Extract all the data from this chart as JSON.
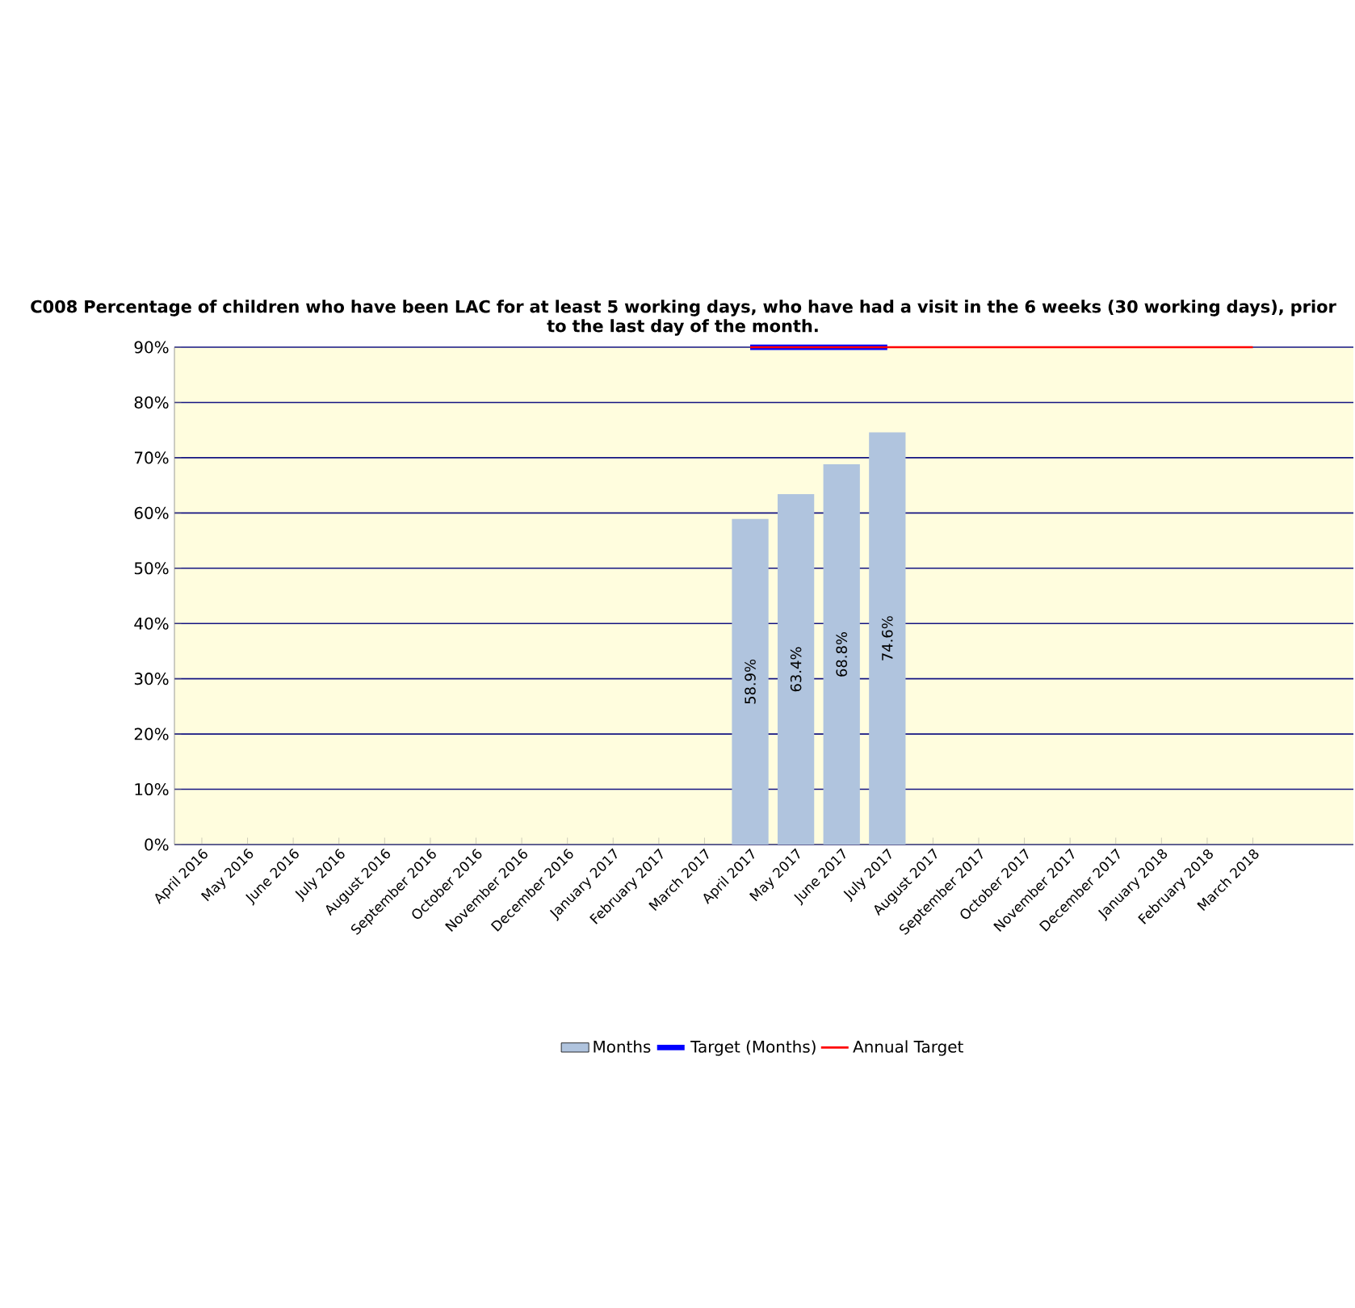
{
  "chart_data": {
    "type": "bar",
    "title": "C008 Percentage of children who have been LAC for at least 5 working days, who have had a  visit in the 6 weeks (30 working days), prior to the last day of the month.",
    "categories": [
      "April 2016",
      "May 2016",
      "June 2016",
      "July 2016",
      "August 2016",
      "September 2016",
      "October 2016",
      "November 2016",
      "December 2016",
      "January 2017",
      "February 2017",
      "March 2017",
      "April 2017",
      "May 2017",
      "June 2017",
      "July 2017",
      "August 2017",
      "September 2017",
      "October 2017",
      "November 2017",
      "December 2017",
      "January 2018",
      "February 2018",
      "March 2018"
    ],
    "series": [
      {
        "name": "Months",
        "color": "#b0c4de",
        "values": [
          null,
          null,
          null,
          null,
          null,
          null,
          null,
          null,
          null,
          null,
          null,
          null,
          58.9,
          63.4,
          68.8,
          74.6,
          null,
          null,
          null,
          null,
          null,
          null,
          null,
          null
        ],
        "value_labels": [
          null,
          null,
          null,
          null,
          null,
          null,
          null,
          null,
          null,
          null,
          null,
          null,
          "58.9%",
          "63.4%",
          "68.8%",
          "74.6%",
          null,
          null,
          null,
          null,
          null,
          null,
          null,
          null
        ]
      },
      {
        "name": "Target (Months)",
        "type": "line",
        "color": "#0000ff",
        "values": [
          null,
          null,
          null,
          null,
          null,
          null,
          null,
          null,
          null,
          null,
          null,
          null,
          90,
          90,
          90,
          90,
          null,
          null,
          null,
          null,
          null,
          null,
          null,
          null
        ]
      },
      {
        "name": "Annual Target",
        "type": "line",
        "color": "#ff0000",
        "values": [
          null,
          null,
          null,
          null,
          null,
          null,
          null,
          null,
          null,
          null,
          null,
          null,
          90,
          90,
          90,
          90,
          90,
          90,
          90,
          90,
          90,
          90,
          90,
          90
        ]
      }
    ],
    "ylim": [
      0,
      90
    ],
    "yticks": [
      {
        "value": 0,
        "label": "0%"
      },
      {
        "value": 10,
        "label": "10%"
      },
      {
        "value": 20,
        "label": "20%"
      },
      {
        "value": 30,
        "label": "30%"
      },
      {
        "value": 40,
        "label": "40%"
      },
      {
        "value": 50,
        "label": "50%"
      },
      {
        "value": 60,
        "label": "60%"
      },
      {
        "value": 70,
        "label": "70%"
      },
      {
        "value": 80,
        "label": "80%"
      },
      {
        "value": 90,
        "label": "90%"
      }
    ],
    "grid": "y",
    "legend": "bottom"
  }
}
